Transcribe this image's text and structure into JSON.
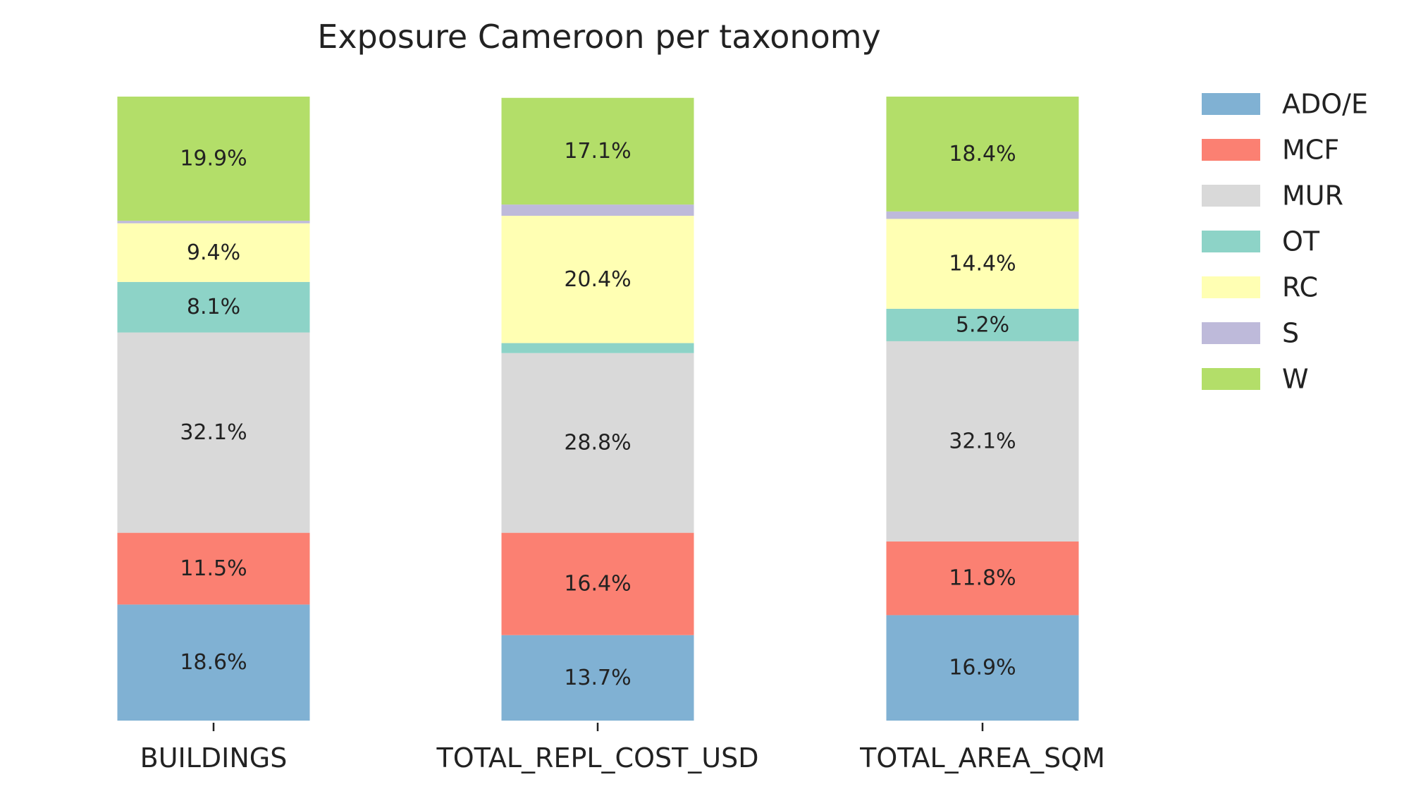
{
  "chart_data": {
    "type": "bar",
    "stacked": true,
    "normalized": true,
    "title": "Exposure Cameroon per taxonomy",
    "xlabel": "",
    "ylabel": "",
    "ylim": [
      0,
      100
    ],
    "grid": false,
    "legend_position": "right",
    "categories": [
      "BUILDINGS",
      "TOTAL_REPL_COST_USD",
      "TOTAL_AREA_SQM"
    ],
    "series": [
      {
        "name": "ADO/E",
        "color": "#80b1d3",
        "values": [
          18.6,
          13.7,
          16.9
        ],
        "labels": [
          "18.6%",
          "13.7%",
          "16.9%"
        ]
      },
      {
        "name": "MCF",
        "color": "#fb8072",
        "values": [
          11.5,
          16.4,
          11.8
        ],
        "labels": [
          "11.5%",
          "16.4%",
          "11.8%"
        ]
      },
      {
        "name": "MUR",
        "color": "#d9d9d9",
        "values": [
          32.1,
          28.8,
          32.1
        ],
        "labels": [
          "32.1%",
          "28.8%",
          "32.1%"
        ]
      },
      {
        "name": "OT",
        "color": "#8dd3c7",
        "values": [
          8.1,
          1.6,
          5.2
        ],
        "labels": [
          "8.1%",
          "",
          "5.2%"
        ]
      },
      {
        "name": "RC",
        "color": "#ffffb3",
        "values": [
          9.4,
          20.4,
          14.4
        ],
        "labels": [
          "9.4%",
          "20.4%",
          "14.4%"
        ]
      },
      {
        "name": "S",
        "color": "#bebada",
        "values": [
          0.4,
          1.8,
          1.2
        ],
        "labels": [
          "",
          "",
          ""
        ]
      },
      {
        "name": "W",
        "color": "#b3de69",
        "values": [
          19.9,
          17.1,
          18.4
        ],
        "labels": [
          "19.9%",
          "17.1%",
          "18.4%"
        ]
      }
    ]
  }
}
